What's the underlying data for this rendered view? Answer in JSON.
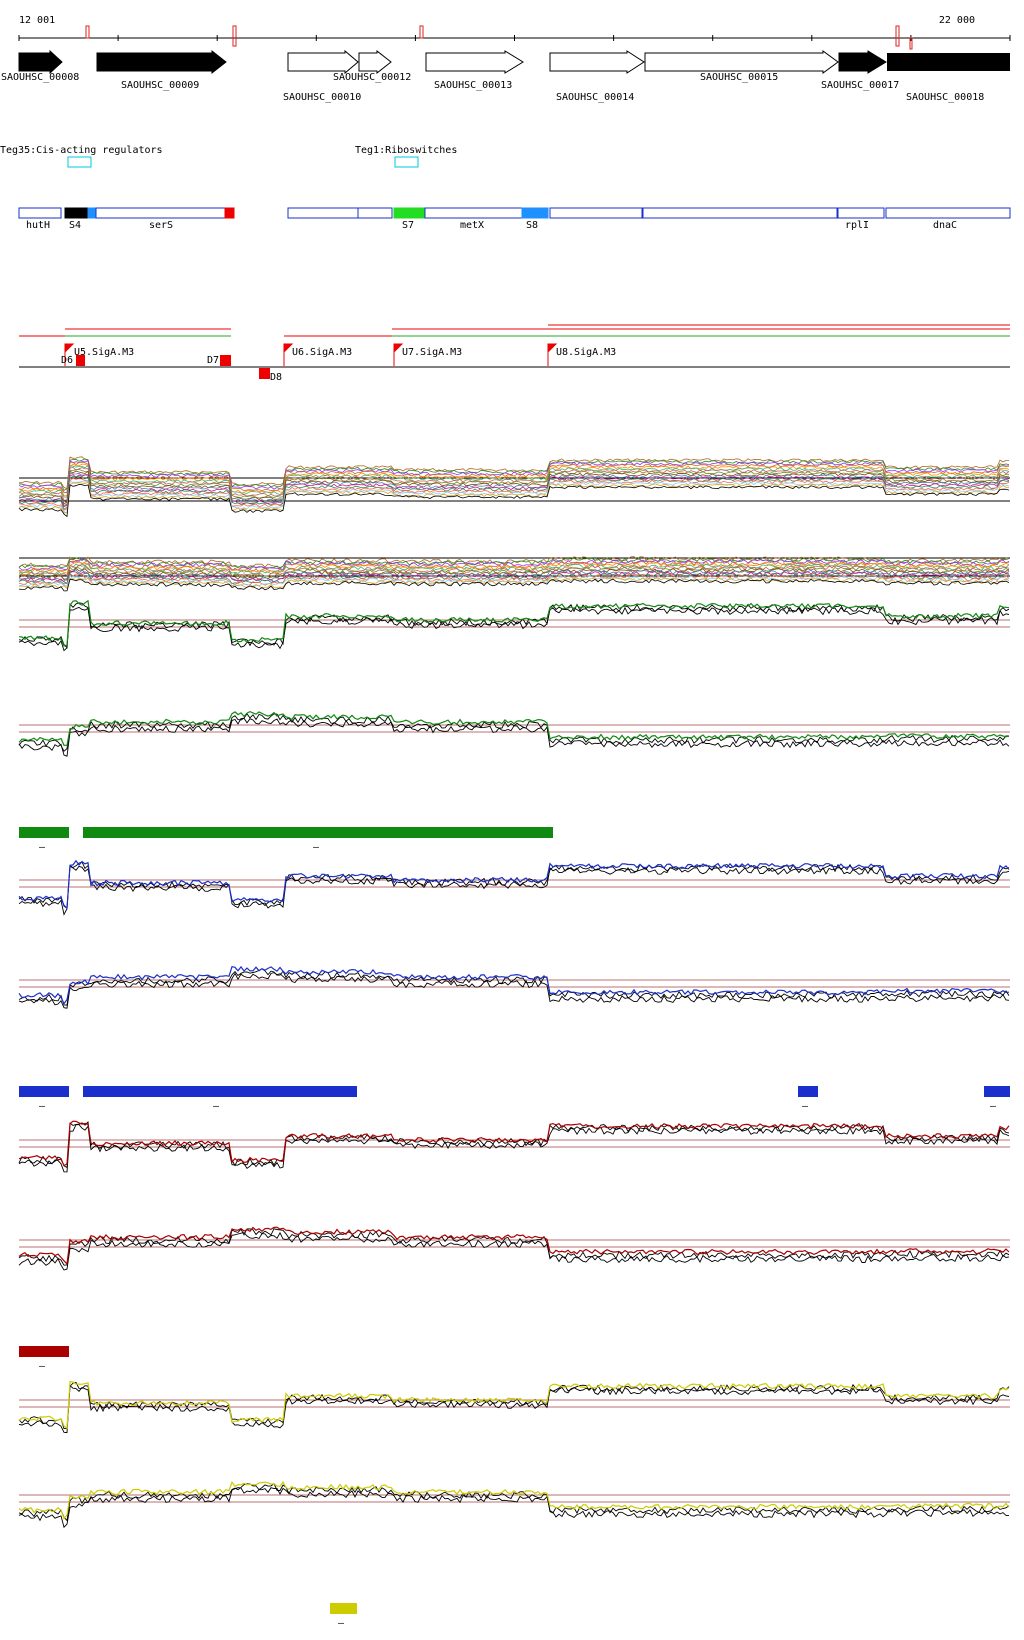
{
  "coordinates": {
    "start": "12 001",
    "end": "22 000"
  },
  "genes": [
    {
      "id": "SAOUHSC_00008",
      "filled": true
    },
    {
      "id": "SAOUHSC_00009",
      "filled": true
    },
    {
      "id": "SAOUHSC_00010",
      "filled": false
    },
    {
      "id": "SAOUHSC_00012",
      "filled": false
    },
    {
      "id": "SAOUHSC_00013",
      "filled": false
    },
    {
      "id": "SAOUHSC_00014",
      "filled": false
    },
    {
      "id": "SAOUHSC_00015",
      "filled": false
    },
    {
      "id": "SAOUHSC_00017",
      "filled": true
    },
    {
      "id": "SAOUHSC_00018",
      "filled": true
    }
  ],
  "regulator_tracks": [
    {
      "label": "Teg35:Cis-acting regulators"
    },
    {
      "label": "Teg1:Riboswitches"
    }
  ],
  "segments": [
    "hutH",
    "S4",
    "serS",
    "S7",
    "metX",
    "S8",
    "rplI",
    "dnaC"
  ],
  "segment_colors": {
    "S4": "#000000",
    "S7": "#22dd22",
    "S8": "#1e90ff",
    "red": "#ee0000"
  },
  "promoters": [
    "U5.SigA.M3",
    "U6.SigA.M3",
    "U7.SigA.M3",
    "U8.SigA.M3"
  ],
  "terminators": [
    "D6",
    "D7",
    "D8"
  ],
  "condition_colors": {
    "green": "#108a10",
    "blue": "#1a2fcc",
    "red": "#aa0000",
    "yellow": "#cccc00"
  },
  "bar_mark": "–"
}
